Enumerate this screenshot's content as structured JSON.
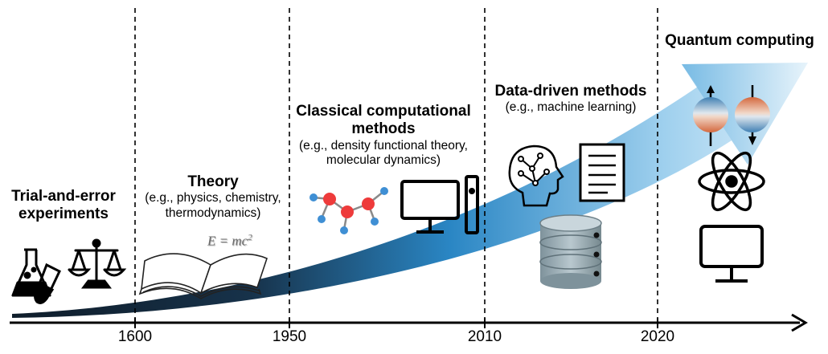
{
  "eras": [
    {
      "title": "Trial-and-error\nexperiments",
      "subtitle": ""
    },
    {
      "title": "Theory",
      "subtitle": "(e.g., physics, chemistry,\nthermodynamics)"
    },
    {
      "title": "Classical computational\nmethods",
      "subtitle": "(e.g., density functional theory,\nmolecular dynamics)"
    },
    {
      "title": "Data-driven methods",
      "subtitle": "(e.g., machine learning)"
    },
    {
      "title": "Quantum computing",
      "subtitle": ""
    }
  ],
  "equation": {
    "lhs": "E = mc",
    "exponent": "2"
  },
  "timeline": {
    "years": [
      "1600",
      "1950",
      "2010",
      "2020"
    ]
  },
  "colors": {
    "arrow_dark": "#0f1d2a",
    "arrow_mid": "#2a86c4",
    "arrow_light": "#9fd0ee",
    "molecule_red": "#ee3b3b",
    "molecule_blue": "#3f8fd4",
    "spin_orange": "#d8744a",
    "spin_blue": "#4a86b8",
    "database_gray": "#8fa2aa"
  },
  "icons": [
    "lab-flask-icon",
    "test-tube-icon",
    "balance-scale-icon",
    "open-book-icon",
    "molecule-icon",
    "desktop-computer-icon",
    "brain-circuit-icon",
    "document-icon",
    "database-icon",
    "qubit-spin-icon",
    "atom-icon",
    "monitor-icon"
  ]
}
